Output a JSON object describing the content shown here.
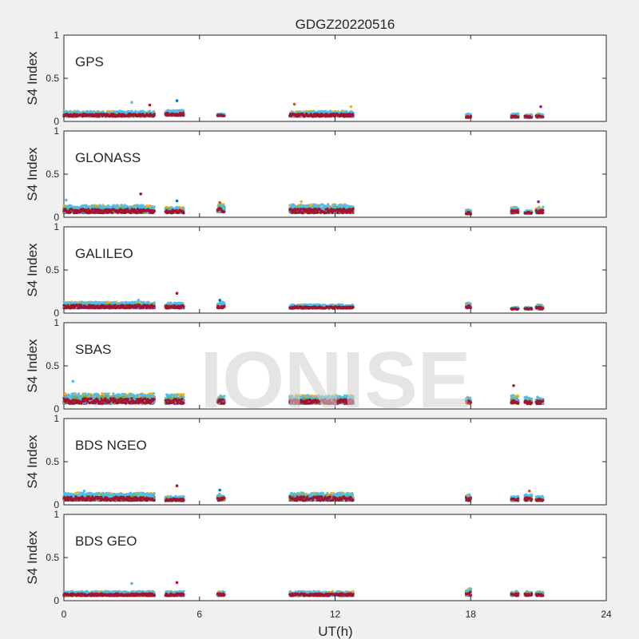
{
  "chart_data": {
    "type": "scatter",
    "title": "GDGZ20220516",
    "xlabel": "UT(h)",
    "ylabel": "S4 Index",
    "xlim": [
      0,
      24
    ],
    "ylim": [
      0,
      1
    ],
    "xticks": [
      "0",
      "6",
      "12",
      "18",
      "24"
    ],
    "yticks": [
      "0",
      "0.5",
      "1"
    ],
    "watermark": "IONISE",
    "series_colors": [
      "#0072BD",
      "#D95319",
      "#EDB120",
      "#7E2F8E",
      "#77AC30",
      "#4DBEEE",
      "#A2142F"
    ],
    "panels": [
      {
        "name": "GPS",
        "segments": [
          {
            "x": [
              0.0,
              4.0
            ],
            "base": [
              0.05,
              0.12
            ]
          },
          {
            "x": [
              4.5,
              5.3
            ],
            "base": [
              0.06,
              0.13
            ]
          },
          {
            "x": [
              6.8,
              7.1
            ],
            "base": [
              0.06,
              0.09
            ]
          },
          {
            "x": [
              10.0,
              12.8
            ],
            "base": [
              0.05,
              0.12
            ]
          },
          {
            "x": [
              17.8,
              18.0
            ],
            "base": [
              0.04,
              0.09
            ]
          },
          {
            "x": [
              19.8,
              20.1
            ],
            "base": [
              0.04,
              0.09
            ]
          },
          {
            "x": [
              20.4,
              20.7
            ],
            "base": [
              0.04,
              0.08
            ]
          },
          {
            "x": [
              20.9,
              21.2
            ],
            "base": [
              0.04,
              0.09
            ]
          }
        ],
        "peaks": [
          {
            "x": 3.0,
            "y": 0.22
          },
          {
            "x": 3.8,
            "y": 0.19
          },
          {
            "x": 5.0,
            "y": 0.24
          },
          {
            "x": 10.2,
            "y": 0.2
          },
          {
            "x": 12.7,
            "y": 0.17
          },
          {
            "x": 21.1,
            "y": 0.17
          }
        ]
      },
      {
        "name": "GLONASS",
        "segments": [
          {
            "x": [
              0.0,
              4.0
            ],
            "base": [
              0.04,
              0.14
            ]
          },
          {
            "x": [
              4.5,
              5.3
            ],
            "base": [
              0.04,
              0.12
            ]
          },
          {
            "x": [
              6.8,
              7.1
            ],
            "base": [
              0.05,
              0.15
            ]
          },
          {
            "x": [
              10.0,
              12.8
            ],
            "base": [
              0.04,
              0.15
            ]
          },
          {
            "x": [
              17.8,
              18.0
            ],
            "base": [
              0.03,
              0.09
            ]
          },
          {
            "x": [
              19.8,
              20.1
            ],
            "base": [
              0.04,
              0.12
            ]
          },
          {
            "x": [
              20.4,
              20.7
            ],
            "base": [
              0.04,
              0.08
            ]
          },
          {
            "x": [
              20.9,
              21.2
            ],
            "base": [
              0.04,
              0.12
            ]
          }
        ],
        "peaks": [
          {
            "x": 0.1,
            "y": 0.2
          },
          {
            "x": 3.4,
            "y": 0.27
          },
          {
            "x": 5.0,
            "y": 0.19
          },
          {
            "x": 6.9,
            "y": 0.17
          },
          {
            "x": 10.5,
            "y": 0.18
          },
          {
            "x": 21.0,
            "y": 0.18
          }
        ]
      },
      {
        "name": "GALILEO",
        "segments": [
          {
            "x": [
              0.0,
              4.0
            ],
            "base": [
              0.05,
              0.13
            ]
          },
          {
            "x": [
              4.5,
              5.3
            ],
            "base": [
              0.05,
              0.12
            ]
          },
          {
            "x": [
              6.8,
              7.1
            ],
            "base": [
              0.05,
              0.13
            ]
          },
          {
            "x": [
              10.0,
              12.8
            ],
            "base": [
              0.05,
              0.1
            ]
          },
          {
            "x": [
              17.8,
              18.0
            ],
            "base": [
              0.05,
              0.12
            ]
          },
          {
            "x": [
              19.8,
              20.1
            ],
            "base": [
              0.04,
              0.07
            ]
          },
          {
            "x": [
              20.4,
              20.7
            ],
            "base": [
              0.04,
              0.07
            ]
          },
          {
            "x": [
              20.9,
              21.2
            ],
            "base": [
              0.04,
              0.1
            ]
          }
        ],
        "peaks": [
          {
            "x": 3.3,
            "y": 0.15
          },
          {
            "x": 5.0,
            "y": 0.23
          },
          {
            "x": 6.9,
            "y": 0.15
          }
        ]
      },
      {
        "name": "SBAS",
        "segments": [
          {
            "x": [
              0.0,
              4.0
            ],
            "base": [
              0.05,
              0.18
            ]
          },
          {
            "x": [
              4.5,
              5.3
            ],
            "base": [
              0.05,
              0.17
            ]
          },
          {
            "x": [
              6.8,
              7.1
            ],
            "base": [
              0.05,
              0.16
            ]
          },
          {
            "x": [
              10.0,
              12.8
            ],
            "base": [
              0.05,
              0.16
            ]
          },
          {
            "x": [
              17.8,
              18.0
            ],
            "base": [
              0.05,
              0.14
            ]
          },
          {
            "x": [
              19.8,
              20.1
            ],
            "base": [
              0.05,
              0.16
            ]
          },
          {
            "x": [
              20.4,
              20.7
            ],
            "base": [
              0.05,
              0.14
            ]
          },
          {
            "x": [
              20.9,
              21.2
            ],
            "base": [
              0.05,
              0.14
            ]
          }
        ],
        "peaks": [
          {
            "x": 0.4,
            "y": 0.32
          },
          {
            "x": 19.9,
            "y": 0.27
          }
        ]
      },
      {
        "name": "BDS NGEO",
        "segments": [
          {
            "x": [
              0.0,
              4.0
            ],
            "base": [
              0.04,
              0.14
            ]
          },
          {
            "x": [
              4.5,
              5.3
            ],
            "base": [
              0.04,
              0.1
            ]
          },
          {
            "x": [
              6.8,
              7.1
            ],
            "base": [
              0.04,
              0.13
            ]
          },
          {
            "x": [
              10.0,
              12.8
            ],
            "base": [
              0.04,
              0.14
            ]
          },
          {
            "x": [
              17.8,
              18.0
            ],
            "base": [
              0.04,
              0.12
            ]
          },
          {
            "x": [
              19.8,
              20.1
            ],
            "base": [
              0.04,
              0.1
            ]
          },
          {
            "x": [
              20.4,
              20.7
            ],
            "base": [
              0.04,
              0.12
            ]
          },
          {
            "x": [
              20.9,
              21.2
            ],
            "base": [
              0.04,
              0.1
            ]
          }
        ],
        "peaks": [
          {
            "x": 0.9,
            "y": 0.16
          },
          {
            "x": 5.0,
            "y": 0.22
          },
          {
            "x": 6.9,
            "y": 0.17
          },
          {
            "x": 20.6,
            "y": 0.16
          }
        ]
      },
      {
        "name": "BDS GEO",
        "segments": [
          {
            "x": [
              0.0,
              4.0
            ],
            "base": [
              0.05,
              0.11
            ]
          },
          {
            "x": [
              4.5,
              5.3
            ],
            "base": [
              0.05,
              0.11
            ]
          },
          {
            "x": [
              6.8,
              7.1
            ],
            "base": [
              0.05,
              0.11
            ]
          },
          {
            "x": [
              10.0,
              12.8
            ],
            "base": [
              0.05,
              0.11
            ]
          },
          {
            "x": [
              17.8,
              18.0
            ],
            "base": [
              0.05,
              0.14
            ]
          },
          {
            "x": [
              19.8,
              20.1
            ],
            "base": [
              0.05,
              0.11
            ]
          },
          {
            "x": [
              20.4,
              20.7
            ],
            "base": [
              0.05,
              0.11
            ]
          },
          {
            "x": [
              20.9,
              21.2
            ],
            "base": [
              0.05,
              0.11
            ]
          }
        ],
        "peaks": [
          {
            "x": 3.0,
            "y": 0.2
          },
          {
            "x": 5.0,
            "y": 0.21
          }
        ]
      }
    ]
  }
}
